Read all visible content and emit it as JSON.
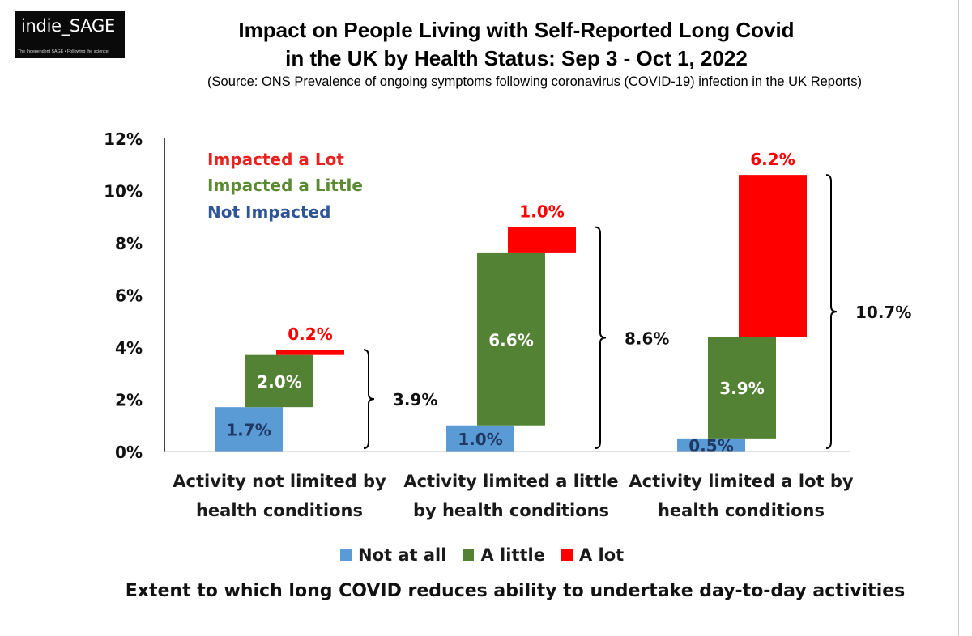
{
  "logo": {
    "name": "indie_SAGE",
    "tagline": "The Independent SAGE • Following the science"
  },
  "header": {
    "title_line1": "Impact on People Living with Self-Reported Long Covid",
    "title_line2": "in the UK by Health Status: Sep 3 - Oct 1, 2022",
    "source": "(Source: ONS Prevalence of ongoing symptoms following coronavirus (COVID-19) infection in the UK Reports)"
  },
  "colors": {
    "not_at_all": "#5b9bd5",
    "a_little": "#548235",
    "a_lot": "#ff0000",
    "inset_red": "#e8231f",
    "inset_green": "#5b8a32",
    "inset_blue": "#2f5597"
  },
  "inset_legend": {
    "lot": "Impacted a Lot",
    "little": "Impacted a Little",
    "none": "Not Impacted"
  },
  "chart_data": {
    "type": "bar",
    "subtype": "waterfall-stacked",
    "categories": [
      "Activity not limited by health conditions",
      "Activity limited a little by health conditions",
      "Activity limited a lot by health conditions"
    ],
    "category_lines": [
      [
        "Activity not limited by",
        "health conditions"
      ],
      [
        "Activity limited a little",
        "by health conditions"
      ],
      [
        "Activity limited a lot by",
        "health conditions"
      ]
    ],
    "series": [
      {
        "name": "Not at all",
        "values": [
          1.7,
          1.0,
          0.5
        ],
        "labels": [
          "1.7%",
          "1.0%",
          "0.5%"
        ]
      },
      {
        "name": "A little",
        "values": [
          2.0,
          6.6,
          3.9
        ],
        "labels": [
          "2.0%",
          "6.6%",
          "3.9%"
        ]
      },
      {
        "name": "A lot",
        "values": [
          0.2,
          1.0,
          6.2
        ],
        "labels": [
          "0.2%",
          "1.0%",
          "6.2%"
        ]
      }
    ],
    "totals": [
      "3.9%",
      "8.6%",
      "10.7%"
    ],
    "y_ticks": [
      "0%",
      "2%",
      "4%",
      "6%",
      "8%",
      "10%",
      "12%"
    ],
    "ylim": [
      0,
      12
    ],
    "xlabel": "Extent to which long COVID reduces ability to undertake day-to-day activities",
    "legend_position": "bottom",
    "grid": false
  }
}
